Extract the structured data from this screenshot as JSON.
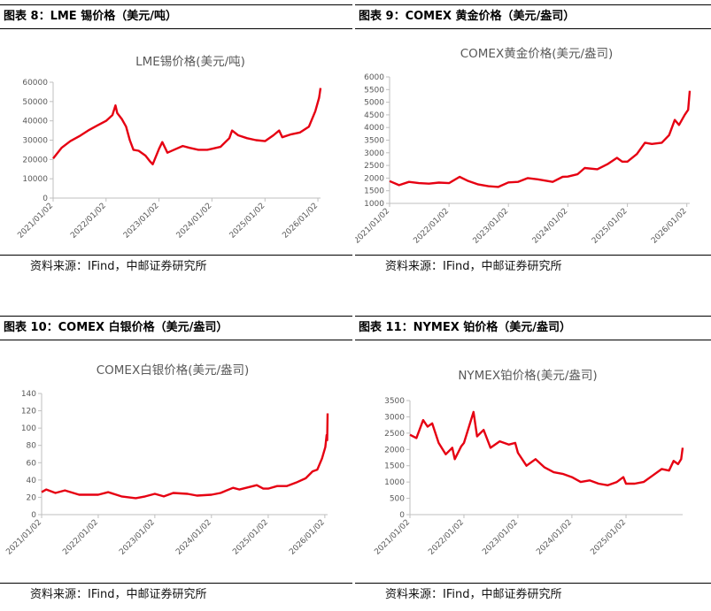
{
  "panels": [
    {
      "header": "图表 8：LME 锡价格（美元/吨）",
      "source": "资料来源：IFind，中邮证券研究所",
      "chart_data": {
        "type": "line",
        "title": "LME锡价格(美元/吨)",
        "ylim": [
          0,
          60000
        ],
        "yticks": [
          "0",
          "10000",
          "20000",
          "30000",
          "40000",
          "50000",
          "60000"
        ],
        "xticks": [
          "2021/01/02",
          "2022/01/02",
          "2023/01/02",
          "2024/01/02",
          "2025/01/02",
          "2026/01/02"
        ],
        "x_range": [
          "2021/01/02",
          "2026/01/20"
        ],
        "color": "#e60012",
        "series": [
          {
            "points": [
              [
                "2021/01/02",
                20500
              ],
              [
                "2021/03/01",
                26000
              ],
              [
                "2021/05/01",
                29500
              ],
              [
                "2021/07/01",
                32000
              ],
              [
                "2021/09/01",
                35000
              ],
              [
                "2021/11/01",
                37500
              ],
              [
                "2022/01/02",
                40000
              ],
              [
                "2022/02/15",
                43000
              ],
              [
                "2022/03/08",
                48000
              ],
              [
                "2022/03/20",
                44000
              ],
              [
                "2022/04/20",
                41000
              ],
              [
                "2022/05/20",
                37000
              ],
              [
                "2022/06/15",
                30000
              ],
              [
                "2022/07/10",
                25000
              ],
              [
                "2022/08/15",
                24500
              ],
              [
                "2022/10/01",
                22000
              ],
              [
                "2022/11/01",
                19000
              ],
              [
                "2022/11/20",
                17500
              ],
              [
                "2023/01/02",
                25500
              ],
              [
                "2023/01/25",
                29000
              ],
              [
                "2023/03/01",
                23500
              ],
              [
                "2023/05/01",
                25500
              ],
              [
                "2023/06/15",
                27000
              ],
              [
                "2023/08/01",
                26000
              ],
              [
                "2023/10/01",
                25000
              ],
              [
                "2023/12/01",
                25000
              ],
              [
                "2024/01/02",
                25500
              ],
              [
                "2024/03/01",
                26500
              ],
              [
                "2024/05/01",
                31000
              ],
              [
                "2024/05/20",
                35000
              ],
              [
                "2024/07/01",
                32500
              ],
              [
                "2024/09/01",
                31000
              ],
              [
                "2024/11/01",
                30000
              ],
              [
                "2025/01/02",
                29500
              ],
              [
                "2025/03/01",
                32500
              ],
              [
                "2025/04/10",
                35000
              ],
              [
                "2025/05/01",
                31500
              ],
              [
                "2025/07/01",
                33000
              ],
              [
                "2025/09/01",
                34000
              ],
              [
                "2025/11/01",
                37000
              ],
              [
                "2025/12/15",
                45000
              ],
              [
                "2026/01/10",
                52000
              ],
              [
                "2026/01/20",
                57000
              ]
            ]
          }
        ]
      }
    },
    {
      "header": "图表 9：COMEX 黄金价格（美元/盎司）",
      "source": "资料来源：IFind，中邮证券研究所",
      "chart_data": {
        "type": "line",
        "title": "COMEX黄金价格(美元/盎司)",
        "ylim": [
          1000,
          6000
        ],
        "yticks": [
          "1000",
          "1500",
          "2000",
          "2500",
          "3000",
          "3500",
          "4000",
          "4500",
          "5000",
          "5500",
          "6000"
        ],
        "xticks": [
          "2021/01/02",
          "2022/01/02",
          "2023/01/02",
          "2024/01/02",
          "2025/01/02",
          "2026/01/02"
        ],
        "x_range": [
          "2021/01/02",
          "2026/01/20"
        ],
        "color": "#e60012",
        "series": [
          {
            "points": [
              [
                "2021/01/02",
                1880
              ],
              [
                "2021/03/01",
                1720
              ],
              [
                "2021/05/01",
                1850
              ],
              [
                "2021/07/01",
                1800
              ],
              [
                "2021/09/01",
                1780
              ],
              [
                "2021/11/01",
                1820
              ],
              [
                "2022/01/02",
                1800
              ],
              [
                "2022/03/08",
                2050
              ],
              [
                "2022/05/01",
                1880
              ],
              [
                "2022/07/01",
                1750
              ],
              [
                "2022/09/01",
                1680
              ],
              [
                "2022/11/01",
                1650
              ],
              [
                "2023/01/02",
                1830
              ],
              [
                "2023/03/01",
                1850
              ],
              [
                "2023/05/01",
                2000
              ],
              [
                "2023/07/01",
                1950
              ],
              [
                "2023/10/01",
                1850
              ],
              [
                "2023/12/01",
                2050
              ],
              [
                "2024/01/02",
                2060
              ],
              [
                "2024/03/01",
                2150
              ],
              [
                "2024/04/15",
                2400
              ],
              [
                "2024/07/01",
                2350
              ],
              [
                "2024/09/01",
                2550
              ],
              [
                "2024/10/30",
                2800
              ],
              [
                "2024/12/01",
                2650
              ],
              [
                "2025/01/02",
                2650
              ],
              [
                "2025/03/01",
                2950
              ],
              [
                "2025/04/20",
                3400
              ],
              [
                "2025/06/01",
                3350
              ],
              [
                "2025/08/01",
                3400
              ],
              [
                "2025/09/15",
                3700
              ],
              [
                "2025/10/20",
                4300
              ],
              [
                "2025/11/15",
                4100
              ],
              [
                "2025/12/20",
                4500
              ],
              [
                "2026/01/10",
                4700
              ],
              [
                "2026/01/20",
                5450
              ]
            ]
          }
        ]
      }
    },
    {
      "header": "图表 10：COMEX 白银价格（美元/盎司）",
      "source": "资料来源：IFind，中邮证券研究所",
      "chart_data": {
        "type": "line",
        "title": "COMEX白银价格(美元/盎司)",
        "ylim": [
          0,
          140
        ],
        "yticks": [
          "0",
          "20",
          "40",
          "60",
          "80",
          "100",
          "120",
          "140"
        ],
        "xticks": [
          "2021/01/02",
          "2022/01/02",
          "2023/01/02",
          "2024/01/02",
          "2025/01/02",
          "2026/01/02"
        ],
        "x_range": [
          "2021/01/02",
          "2026/01/20"
        ],
        "color": "#e60012",
        "series": [
          {
            "points": [
              [
                "2021/01/02",
                26
              ],
              [
                "2021/02/01",
                29
              ],
              [
                "2021/04/01",
                25
              ],
              [
                "2021/06/01",
                28
              ],
              [
                "2021/09/01",
                23
              ],
              [
                "2021/12/01",
                23
              ],
              [
                "2022/01/02",
                23
              ],
              [
                "2022/03/08",
                26
              ],
              [
                "2022/06/01",
                21
              ],
              [
                "2022/09/01",
                19
              ],
              [
                "2022/11/01",
                21
              ],
              [
                "2023/01/02",
                24
              ],
              [
                "2023/03/01",
                21
              ],
              [
                "2023/05/01",
                25
              ],
              [
                "2023/08/01",
                24
              ],
              [
                "2023/10/01",
                22
              ],
              [
                "2024/01/02",
                23
              ],
              [
                "2024/03/01",
                25
              ],
              [
                "2024/05/20",
                31
              ],
              [
                "2024/07/01",
                29
              ],
              [
                "2024/10/20",
                34
              ],
              [
                "2024/12/01",
                30
              ],
              [
                "2025/01/02",
                30
              ],
              [
                "2025/03/01",
                33
              ],
              [
                "2025/05/01",
                33
              ],
              [
                "2025/07/01",
                37
              ],
              [
                "2025/09/01",
                42
              ],
              [
                "2025/10/15",
                50
              ],
              [
                "2025/11/15",
                52
              ],
              [
                "2025/12/15",
                65
              ],
              [
                "2026/01/05",
                78
              ],
              [
                "2026/01/14",
                92
              ],
              [
                "2026/01/17",
                86
              ],
              [
                "2026/01/20",
                117
              ]
            ]
          }
        ]
      }
    },
    {
      "header": "图表 11：NYMEX 铂价格（美元/盎司）",
      "source": "资料来源：IFind，中邮证券研究所",
      "chart_data": {
        "type": "line",
        "title": "NYMEX铂价格(美元/盎司)",
        "ylim": [
          0,
          3500
        ],
        "yticks": [
          "0",
          "500",
          "1000",
          "1500",
          "2000",
          "2500",
          "3000",
          "3500"
        ],
        "xticks": [
          "2021/01/02",
          "2022/01/02",
          "2023/01/02",
          "2024/01/02",
          "2025/01/02"
        ],
        "x_range": [
          "2021/01/02",
          "2026/01/20"
        ],
        "color": "#e60012",
        "series": [
          {
            "points": [
              [
                "2021/01/02",
                2450
              ],
              [
                "2021/02/15",
                2350
              ],
              [
                "2021/04/01",
                2900
              ],
              [
                "2021/05/01",
                2700
              ],
              [
                "2021/06/01",
                2800
              ],
              [
                "2021/07/15",
                2200
              ],
              [
                "2021/09/01",
                1850
              ],
              [
                "2021/10/15",
                2050
              ],
              [
                "2021/11/01",
                1700
              ],
              [
                "2021/12/15",
                2100
              ],
              [
                "2022/01/02",
                2200
              ],
              [
                "2022/03/08",
                3150
              ],
              [
                "2022/04/01",
                2400
              ],
              [
                "2022/05/15",
                2600
              ],
              [
                "2022/07/01",
                2050
              ],
              [
                "2022/09/01",
                2250
              ],
              [
                "2022/11/01",
                2150
              ],
              [
                "2022/12/15",
                2200
              ],
              [
                "2023/01/02",
                1900
              ],
              [
                "2023/03/01",
                1500
              ],
              [
                "2023/05/01",
                1700
              ],
              [
                "2023/07/01",
                1450
              ],
              [
                "2023/09/01",
                1300
              ],
              [
                "2023/11/01",
                1250
              ],
              [
                "2024/01/02",
                1150
              ],
              [
                "2024/03/01",
                1000
              ],
              [
                "2024/05/01",
                1050
              ],
              [
                "2024/07/01",
                950
              ],
              [
                "2024/09/01",
                900
              ],
              [
                "2024/11/01",
                1000
              ],
              [
                "2024/12/15",
                1150
              ],
              [
                "2025/01/02",
                950
              ],
              [
                "2025/03/01",
                950
              ],
              [
                "2025/05/01",
                1000
              ],
              [
                "2025/07/01",
                1200
              ],
              [
                "2025/09/01",
                1400
              ],
              [
                "2025/10/20",
                1350
              ],
              [
                "2025/11/20",
                1650
              ],
              [
                "2025/12/20",
                1550
              ],
              [
                "2026/01/10",
                1700
              ],
              [
                "2026/01/20",
                2050
              ]
            ]
          }
        ]
      }
    }
  ]
}
